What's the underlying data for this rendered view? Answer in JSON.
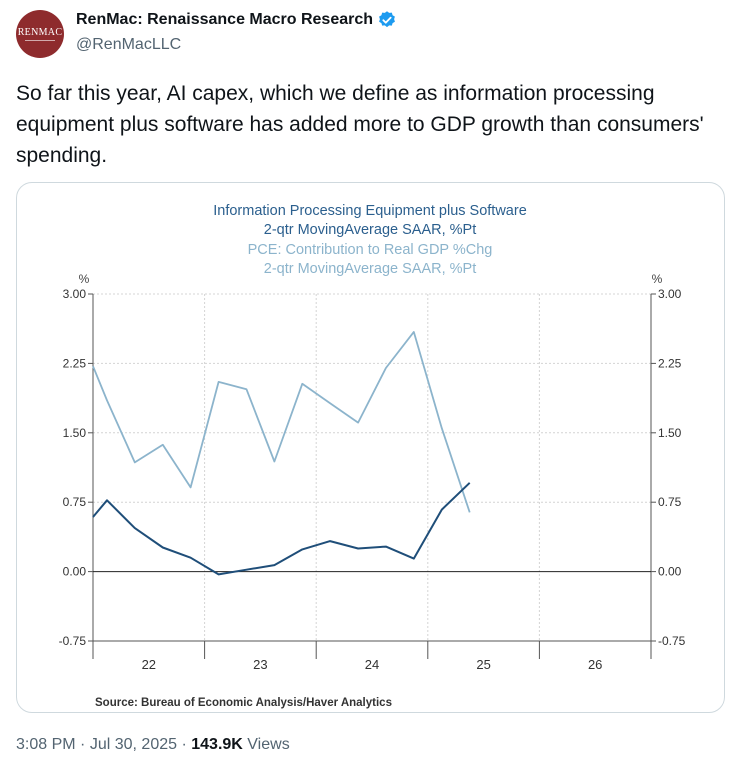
{
  "author": {
    "avatar_text": "RENMAC",
    "display_name": "RenMac: Renaissance Macro Research",
    "handle": "@RenMacLLC"
  },
  "tweet": {
    "text": "So far this year, AI capex, which we define as information processing equipment plus software has added more to GDP growth than consumers' spending."
  },
  "meta": {
    "time": "3:08 PM",
    "sep1": "·",
    "date": "Jul 30, 2025",
    "sep2": "·",
    "views_count": "143.9K",
    "views_label": "Views"
  },
  "colors": {
    "dark_series": "#1f4e79",
    "light_series": "#8cb4cc",
    "verified": "#1d9bf0"
  },
  "chart_data": {
    "type": "line",
    "title_lines": [
      {
        "text": "Information Processing Equipment plus Software",
        "series": 0
      },
      {
        "text": "2-qtr MovingAverage            SAAR, %Pt",
        "series": 0
      },
      {
        "text": "PCE: Contribution to Real GDP %Chg",
        "series": 1
      },
      {
        "text": "2-qtr MovingAverage      SAAR, %Pt",
        "series": 1
      }
    ],
    "y_unit_left": "%",
    "y_unit_right": "%",
    "ylim": [
      -0.75,
      3.0
    ],
    "yticks": [
      "3.00",
      "2.25",
      "1.50",
      "0.75",
      "0.00",
      "-0.75"
    ],
    "ytick_values": [
      3.0,
      2.25,
      1.5,
      0.75,
      0.0,
      -0.75
    ],
    "xlim": [
      2021.5,
      2026.5
    ],
    "xticks": [
      "22",
      "23",
      "24",
      "25",
      "26"
    ],
    "xtick_values": [
      2022,
      2023,
      2024,
      2025,
      2026
    ],
    "source": "Source:  Bureau of Economic Analysis/Haver Analytics",
    "series": [
      {
        "values": [
          [
            2021.5,
            0.59
          ],
          [
            2021.625,
            0.77
          ],
          [
            2021.875,
            0.47
          ],
          [
            2022.125,
            0.26
          ],
          [
            2022.375,
            0.15
          ],
          [
            2022.625,
            -0.03
          ],
          [
            2022.875,
            0.02
          ],
          [
            2023.125,
            0.07
          ],
          [
            2023.375,
            0.24
          ],
          [
            2023.625,
            0.33
          ],
          [
            2023.875,
            0.25
          ],
          [
            2024.125,
            0.27
          ],
          [
            2024.375,
            0.14
          ],
          [
            2024.625,
            0.67
          ],
          [
            2024.875,
            0.96
          ]
        ]
      },
      {
        "values": [
          [
            2021.5,
            2.22
          ],
          [
            2021.625,
            1.85
          ],
          [
            2021.875,
            1.18
          ],
          [
            2022.125,
            1.37
          ],
          [
            2022.375,
            0.91
          ],
          [
            2022.625,
            2.05
          ],
          [
            2022.875,
            1.97
          ],
          [
            2023.125,
            1.19
          ],
          [
            2023.375,
            2.03
          ],
          [
            2023.625,
            1.82
          ],
          [
            2023.875,
            1.61
          ],
          [
            2024.125,
            2.2
          ],
          [
            2024.375,
            2.59
          ],
          [
            2024.625,
            1.55
          ],
          [
            2024.875,
            0.64
          ]
        ]
      }
    ]
  }
}
